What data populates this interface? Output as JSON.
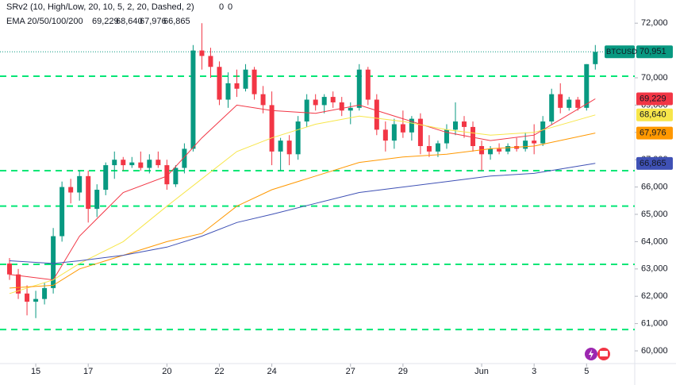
{
  "chart_data": {
    "type": "candlestick",
    "symbol": "BTCUSD",
    "sr_label": "SRv2 (10, High/Low, 20, 10, 5, 2, 20, Dashed, 2)",
    "sr_values": [
      0,
      0
    ],
    "sr_color": "#00e676",
    "sr_levels": [
      70060,
      66600,
      65300,
      63170,
      60780
    ],
    "ema_label": "EMA 20/50/100/200",
    "up_color": "#089981",
    "down_color": "#f23645",
    "open": [
      63200,
      62800,
      62100,
      61800,
      61900,
      62300,
      64200,
      66000,
      65800,
      66400,
      65200,
      65900,
      66800,
      67000,
      66800,
      66900,
      66700,
      67000,
      66800,
      66100,
      66700,
      67400,
      71000,
      70800,
      70400,
      69200,
      69800,
      69600,
      70300,
      69400,
      69000,
      67300,
      67700,
      67200,
      68400,
      69200,
      69000,
      69300,
      69100,
      68800,
      68900,
      70300,
      69200,
      68100,
      67700,
      68300,
      68000,
      68500,
      67500,
      67300,
      67600,
      68100,
      68400,
      68200,
      67500,
      67200,
      67400,
      67300,
      67500,
      67400,
      67700,
      67600,
      68400,
      69400,
      68900,
      69200,
      68900,
      70500
    ],
    "high": [
      63400,
      63000,
      62400,
      62200,
      62500,
      64500,
      66200,
      66300,
      66600,
      66600,
      66100,
      66900,
      67300,
      67100,
      67100,
      67300,
      67200,
      67300,
      67000,
      66800,
      67600,
      71200,
      72000,
      71100,
      70600,
      70200,
      70300,
      70500,
      70400,
      69700,
      69500,
      67800,
      67900,
      68600,
      69400,
      69400,
      69400,
      69500,
      69300,
      69100,
      70500,
      70400,
      69400,
      68400,
      68500,
      68800,
      68600,
      68700,
      67900,
      67700,
      68300,
      69100,
      68600,
      68400,
      67700,
      67500,
      67600,
      67600,
      67800,
      68000,
      68300,
      68600,
      69600,
      69800,
      69300,
      69300,
      70500,
      71200
    ],
    "low": [
      62600,
      61900,
      61300,
      61200,
      61700,
      62100,
      64000,
      65400,
      65500,
      64700,
      64900,
      65700,
      66300,
      66600,
      66700,
      66600,
      66500,
      66700,
      65900,
      66000,
      66500,
      67300,
      70300,
      70000,
      69000,
      68900,
      69300,
      69500,
      69200,
      68700,
      66800,
      66600,
      66800,
      67000,
      68200,
      68800,
      68700,
      68900,
      68600,
      68300,
      68800,
      69000,
      67900,
      67300,
      67400,
      67800,
      67700,
      67200,
      67100,
      67100,
      67400,
      67900,
      67800,
      67300,
      66600,
      67000,
      67200,
      67200,
      67300,
      67300,
      67200,
      67500,
      68300,
      68700,
      68800,
      68800,
      68800,
      70300
    ],
    "close": [
      62800,
      62100,
      61800,
      61900,
      62300,
      64200,
      66000,
      65800,
      66400,
      65200,
      65900,
      66800,
      67000,
      66800,
      66900,
      66700,
      67000,
      66800,
      66100,
      66700,
      67400,
      71000,
      70800,
      70400,
      69200,
      69800,
      69600,
      70300,
      69400,
      69000,
      67300,
      67700,
      67200,
      68400,
      69200,
      69000,
      69300,
      69100,
      68800,
      68900,
      70300,
      69200,
      68100,
      67700,
      68300,
      68000,
      68500,
      67500,
      67300,
      67600,
      68100,
      68400,
      68200,
      67500,
      67200,
      67400,
      67300,
      67500,
      67400,
      67700,
      67600,
      68400,
      69400,
      68900,
      69200,
      68900,
      70500,
      70951
    ],
    "last_price": {
      "value": 70951,
      "label": "70,951"
    },
    "series": [
      {
        "color": "#f23645",
        "x": [
          0,
          5,
          8,
          13,
          18,
          22,
          26,
          30,
          35,
          40,
          45,
          50,
          55,
          60,
          67
        ],
        "values": [
          62800,
          62600,
          64200,
          65800,
          66400,
          67800,
          69000,
          68800,
          68700,
          69000,
          68500,
          68000,
          67700,
          67900,
          69229
        ],
        "last": 69229,
        "last_label": "69,229"
      },
      {
        "color": "#f7e64a",
        "x": [
          0,
          5,
          8,
          13,
          18,
          22,
          26,
          30,
          35,
          40,
          45,
          50,
          55,
          60,
          67
        ],
        "values": [
          62100,
          62600,
          63200,
          64000,
          65300,
          66300,
          67300,
          67800,
          68300,
          68600,
          68400,
          68100,
          67900,
          68000,
          68640
        ],
        "last": 68640,
        "last_label": "68,640"
      },
      {
        "color": "#ff9800",
        "x": [
          0,
          5,
          8,
          13,
          18,
          22,
          26,
          30,
          35,
          40,
          45,
          50,
          55,
          60,
          67
        ],
        "values": [
          62300,
          62400,
          63000,
          63500,
          64000,
          64300,
          65300,
          65900,
          66400,
          66900,
          67100,
          67200,
          67400,
          67500,
          67976
        ],
        "last": 67976,
        "last_label": "67,976"
      },
      {
        "color": "#3f51b5",
        "x": [
          0,
          5,
          8,
          13,
          18,
          22,
          26,
          30,
          35,
          40,
          45,
          50,
          55,
          60,
          67
        ],
        "values": [
          63300,
          63200,
          63300,
          63500,
          63800,
          64200,
          64700,
          65000,
          65400,
          65800,
          66000,
          66200,
          66400,
          66500,
          66865
        ],
        "last": 66865,
        "last_label": "66,865"
      }
    ],
    "xlim": [
      -1.09,
      71.51
    ],
    "xticks": [
      {
        "value": 3,
        "label": "15"
      },
      {
        "value": 9,
        "label": "17"
      },
      {
        "value": 18,
        "label": "20"
      },
      {
        "value": 24,
        "label": "22"
      },
      {
        "value": 30,
        "label": "24"
      },
      {
        "value": 39,
        "label": "27"
      },
      {
        "value": 45,
        "label": "29"
      },
      {
        "value": 54,
        "label": "Jun"
      },
      {
        "value": 60,
        "label": "3"
      },
      {
        "value": 66,
        "label": "5"
      }
    ],
    "ylim": [
      59535,
      72849
    ],
    "yticks": [
      {
        "value": 60000,
        "label": "60,000"
      },
      {
        "value": 61000,
        "label": "61,000"
      },
      {
        "value": 62000,
        "label": "62,000"
      },
      {
        "value": 63000,
        "label": "63,000"
      },
      {
        "value": 64000,
        "label": "64,000"
      },
      {
        "value": 65000,
        "label": "65,000"
      },
      {
        "value": 66000,
        "label": "66,000"
      },
      {
        "value": 67000,
        "label": "67,000"
      },
      {
        "value": 68000,
        "label": "68,000"
      },
      {
        "value": 69000,
        "label": "69,000"
      },
      {
        "value": 70000,
        "label": "70,000"
      },
      {
        "value": 71000,
        "label": "71,000"
      },
      {
        "value": 72000,
        "label": "72,000"
      }
    ],
    "grid": false
  }
}
